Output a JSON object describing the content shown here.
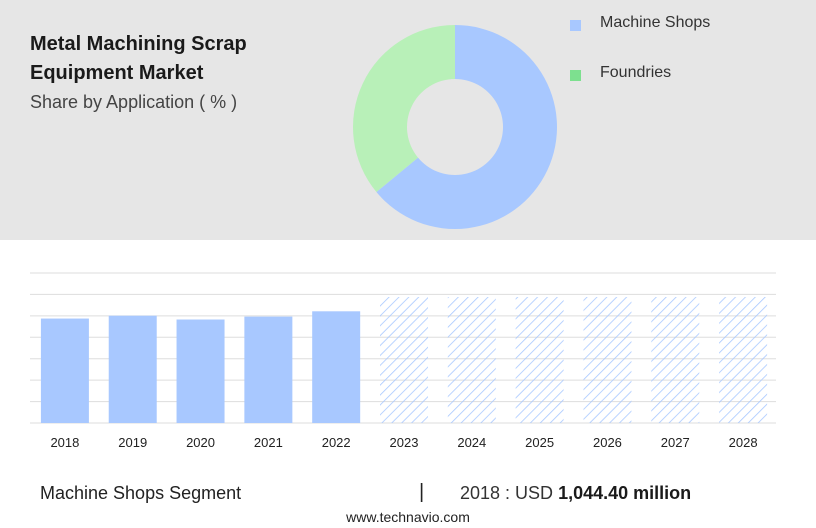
{
  "header": {
    "title": "Metal Machining Scrap Equipment Market",
    "subtitle": "Share by Application ( % )"
  },
  "chart_data": [
    {
      "type": "pie",
      "subtype": "donut",
      "categories": [
        "Machine Shops",
        "Foundries"
      ],
      "values": [
        64,
        36
      ],
      "colors": [
        "#a8c8ff",
        "#b8f0b8"
      ],
      "legend_colors": [
        "#a8c8ff",
        "#7de08f"
      ],
      "legend": "right"
    },
    {
      "type": "bar",
      "categories": [
        "2018",
        "2019",
        "2020",
        "2021",
        "2022",
        "2023",
        "2024",
        "2025",
        "2026",
        "2027",
        "2028"
      ],
      "series": [
        {
          "values": [
            1044.4,
            1073,
            1035,
            1064,
            1117,
            1260,
            1260,
            1260,
            1260,
            1260,
            1260
          ]
        }
      ],
      "forecast_from": "2023",
      "ylim": [
        0,
        1500
      ],
      "grid": true,
      "bar_color": "#a8c8ff"
    }
  ],
  "footer": {
    "segment": "Machine Shops Segment",
    "divider": "|",
    "value_prefix": "2018 : USD",
    "value_bold": "1,044.40 million",
    "source": "www.technavio.com"
  }
}
